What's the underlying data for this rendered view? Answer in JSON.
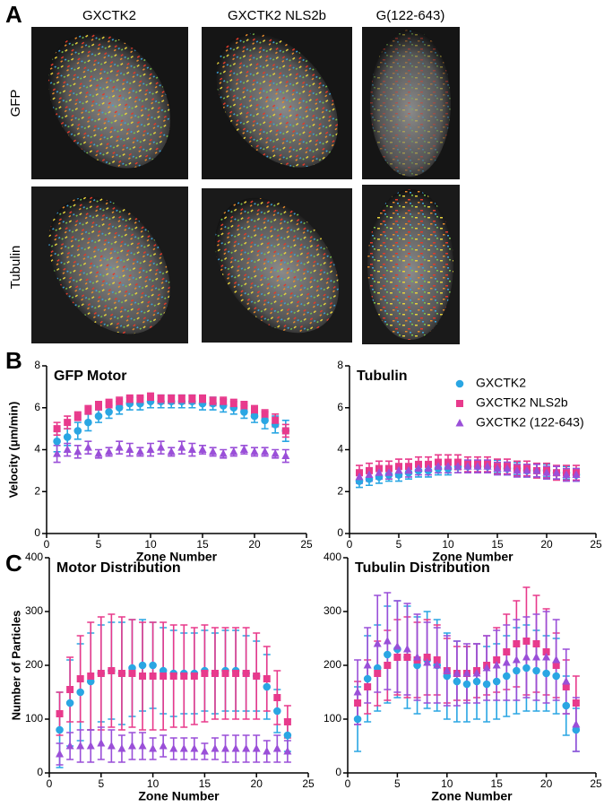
{
  "panels": {
    "a": "A",
    "b": "B",
    "c": "C"
  },
  "images": {
    "columns": [
      "GXCTK2",
      "GXCTK2 NLS2b",
      "G(122-643)"
    ],
    "rows": [
      "GFP",
      "Tubulin"
    ]
  },
  "chart_data": [
    {
      "type": "scatter",
      "title": "GFP Motor",
      "ylabel": "Velocity (μm/min)",
      "xlabel": "Zone Number",
      "x": [
        1,
        2,
        3,
        4,
        5,
        6,
        7,
        8,
        9,
        10,
        11,
        12,
        13,
        14,
        15,
        16,
        17,
        18,
        19,
        20,
        21,
        22,
        23
      ],
      "xlim": [
        0,
        25
      ],
      "xticks": [
        0,
        5,
        10,
        15,
        20,
        25
      ],
      "ylim": [
        0,
        8
      ],
      "yticks": [
        0,
        2,
        4,
        6,
        8
      ],
      "series": [
        {
          "name": "GXCTK2",
          "color": "#2aa6e3",
          "marker": "circle",
          "values": [
            4.4,
            4.6,
            4.9,
            5.3,
            5.6,
            5.8,
            6.0,
            6.2,
            6.2,
            6.3,
            6.3,
            6.3,
            6.3,
            6.3,
            6.2,
            6.2,
            6.1,
            6.0,
            5.8,
            5.6,
            5.4,
            5.2,
            4.9
          ],
          "errors": [
            0.5,
            0.4,
            0.4,
            0.4,
            0.3,
            0.3,
            0.3,
            0.3,
            0.3,
            0.3,
            0.3,
            0.3,
            0.3,
            0.3,
            0.3,
            0.3,
            0.3,
            0.3,
            0.3,
            0.3,
            0.4,
            0.4,
            0.5
          ]
        },
        {
          "name": "GXCTK2 NLS2b",
          "color": "#e83a8c",
          "marker": "square",
          "values": [
            5.0,
            5.3,
            5.6,
            5.9,
            6.1,
            6.2,
            6.3,
            6.4,
            6.4,
            6.5,
            6.4,
            6.4,
            6.4,
            6.4,
            6.4,
            6.3,
            6.3,
            6.2,
            6.1,
            5.9,
            5.7,
            5.4,
            4.9
          ],
          "errors": [
            0.3,
            0.3,
            0.2,
            0.2,
            0.2,
            0.2,
            0.2,
            0.2,
            0.2,
            0.2,
            0.2,
            0.2,
            0.2,
            0.2,
            0.2,
            0.2,
            0.2,
            0.2,
            0.2,
            0.2,
            0.2,
            0.3,
            0.3
          ]
        },
        {
          "name": "GXCTK2 (122-643)",
          "color": "#9a4fd8",
          "marker": "triangle",
          "values": [
            3.8,
            4.0,
            3.9,
            4.1,
            3.8,
            3.9,
            4.1,
            4.0,
            3.9,
            4.0,
            4.1,
            3.9,
            4.1,
            4.0,
            4.0,
            3.9,
            3.8,
            3.9,
            4.0,
            3.9,
            3.9,
            3.8,
            3.7
          ],
          "errors": [
            0.4,
            0.3,
            0.3,
            0.3,
            0.2,
            0.2,
            0.3,
            0.3,
            0.2,
            0.3,
            0.3,
            0.2,
            0.3,
            0.3,
            0.2,
            0.2,
            0.2,
            0.2,
            0.2,
            0.2,
            0.2,
            0.2,
            0.3
          ]
        }
      ]
    },
    {
      "type": "scatter",
      "title": "Tubulin",
      "xlabel": "Zone Number",
      "legend": "top-right",
      "x": [
        1,
        2,
        3,
        4,
        5,
        6,
        7,
        8,
        9,
        10,
        11,
        12,
        13,
        14,
        15,
        16,
        17,
        18,
        19,
        20,
        21,
        22,
        23
      ],
      "xlim": [
        0,
        25
      ],
      "xticks": [
        0,
        5,
        10,
        15,
        20,
        25
      ],
      "ylim": [
        0,
        8
      ],
      "yticks": [
        0,
        2,
        4,
        6,
        8
      ],
      "series": [
        {
          "name": "GXCTK2",
          "color": "#2aa6e3",
          "marker": "circle",
          "values": [
            2.5,
            2.6,
            2.7,
            2.8,
            2.8,
            2.9,
            3.0,
            3.0,
            3.1,
            3.1,
            3.2,
            3.2,
            3.2,
            3.2,
            3.2,
            3.1,
            3.1,
            3.0,
            3.0,
            3.0,
            2.9,
            2.9,
            2.8
          ],
          "errors": [
            0.3,
            0.3,
            0.3,
            0.3,
            0.3,
            0.3,
            0.3,
            0.3,
            0.3,
            0.3,
            0.3,
            0.3,
            0.3,
            0.3,
            0.3,
            0.3,
            0.3,
            0.3,
            0.3,
            0.3,
            0.3,
            0.3,
            0.3
          ]
        },
        {
          "name": "GXCTK2 NLS2b",
          "color": "#e83a8c",
          "marker": "square",
          "values": [
            2.9,
            3.0,
            3.1,
            3.1,
            3.2,
            3.2,
            3.3,
            3.3,
            3.4,
            3.4,
            3.4,
            3.3,
            3.3,
            3.3,
            3.2,
            3.2,
            3.1,
            3.1,
            3.0,
            3.0,
            2.9,
            2.9,
            2.9
          ],
          "errors": [
            0.35,
            0.35,
            0.35,
            0.35,
            0.35,
            0.35,
            0.35,
            0.35,
            0.35,
            0.35,
            0.35,
            0.35,
            0.35,
            0.35,
            0.35,
            0.35,
            0.35,
            0.35,
            0.35,
            0.35,
            0.35,
            0.35,
            0.35
          ]
        },
        {
          "name": "GXCTK2 (122-643)",
          "color": "#9a4fd8",
          "marker": "triangle",
          "values": [
            2.7,
            2.8,
            2.9,
            2.9,
            3.0,
            3.0,
            3.1,
            3.1,
            3.2,
            3.2,
            3.2,
            3.2,
            3.2,
            3.2,
            3.1,
            3.1,
            3.0,
            3.0,
            3.0,
            2.9,
            2.9,
            2.8,
            2.8
          ],
          "errors": [
            0.3,
            0.3,
            0.3,
            0.3,
            0.3,
            0.3,
            0.3,
            0.3,
            0.3,
            0.3,
            0.3,
            0.3,
            0.3,
            0.3,
            0.3,
            0.3,
            0.3,
            0.3,
            0.3,
            0.3,
            0.3,
            0.3,
            0.3
          ]
        }
      ]
    },
    {
      "type": "scatter",
      "title": "Motor Distribution",
      "ylabel": "Number of Particles",
      "xlabel": "Zone Number",
      "x": [
        1,
        2,
        3,
        4,
        5,
        6,
        7,
        8,
        9,
        10,
        11,
        12,
        13,
        14,
        15,
        16,
        17,
        18,
        19,
        20,
        21,
        22,
        23
      ],
      "xlim": [
        0,
        25
      ],
      "xticks": [
        0,
        5,
        10,
        15,
        20,
        25
      ],
      "ylim": [
        0,
        400
      ],
      "yticks": [
        0,
        100,
        200,
        300,
        400
      ],
      "series": [
        {
          "name": "GXCTK2",
          "color": "#2aa6e3",
          "marker": "circle",
          "values": [
            80,
            130,
            150,
            170,
            185,
            190,
            185,
            195,
            200,
            200,
            190,
            185,
            185,
            185,
            190,
            185,
            190,
            190,
            185,
            180,
            160,
            115,
            70
          ],
          "errors": [
            70,
            80,
            90,
            90,
            90,
            90,
            95,
            90,
            85,
            80,
            80,
            80,
            75,
            75,
            75,
            75,
            75,
            75,
            70,
            65,
            60,
            40,
            30
          ]
        },
        {
          "name": "GXCTK2 NLS2b",
          "color": "#e83a8c",
          "marker": "square",
          "values": [
            110,
            155,
            175,
            180,
            185,
            190,
            185,
            185,
            180,
            180,
            180,
            180,
            180,
            180,
            185,
            185,
            185,
            185,
            185,
            180,
            175,
            140,
            95
          ],
          "errors": [
            40,
            60,
            80,
            100,
            105,
            105,
            105,
            100,
            100,
            100,
            100,
            95,
            95,
            90,
            90,
            85,
            85,
            85,
            85,
            80,
            60,
            50,
            30
          ]
        },
        {
          "name": "GXCTK2 (122-643)",
          "color": "#9a4fd8",
          "marker": "triangle",
          "values": [
            35,
            50,
            50,
            50,
            55,
            50,
            45,
            50,
            50,
            45,
            50,
            45,
            45,
            45,
            40,
            45,
            45,
            45,
            45,
            45,
            40,
            45,
            40
          ],
          "errors": [
            20,
            25,
            30,
            30,
            30,
            30,
            25,
            25,
            25,
            20,
            20,
            20,
            20,
            20,
            15,
            20,
            25,
            25,
            25,
            25,
            20,
            25,
            20
          ]
        }
      ]
    },
    {
      "type": "scatter",
      "title": "Tubulin Distribution",
      "xlabel": "Zone Number",
      "x": [
        1,
        2,
        3,
        4,
        5,
        6,
        7,
        8,
        9,
        10,
        11,
        12,
        13,
        14,
        15,
        16,
        17,
        18,
        19,
        20,
        21,
        22,
        23
      ],
      "xlim": [
        0,
        25
      ],
      "xticks": [
        0,
        5,
        10,
        15,
        20,
        25
      ],
      "ylim": [
        0,
        400
      ],
      "yticks": [
        0,
        100,
        200,
        300,
        400
      ],
      "series": [
        {
          "name": "GXCTK2",
          "color": "#2aa6e3",
          "marker": "circle",
          "values": [
            100,
            175,
            195,
            220,
            230,
            215,
            200,
            210,
            200,
            180,
            170,
            165,
            170,
            165,
            170,
            180,
            190,
            195,
            190,
            185,
            180,
            125,
            80
          ],
          "errors": [
            60,
            80,
            80,
            90,
            90,
            95,
            90,
            90,
            85,
            80,
            75,
            70,
            70,
            70,
            70,
            75,
            80,
            80,
            75,
            70,
            70,
            55,
            40
          ]
        },
        {
          "name": "GXCTK2 NLS2b",
          "color": "#e83a8c",
          "marker": "square",
          "values": [
            130,
            160,
            185,
            200,
            215,
            215,
            210,
            215,
            210,
            190,
            185,
            185,
            190,
            200,
            210,
            225,
            240,
            245,
            240,
            225,
            200,
            160,
            130
          ],
          "errors": [
            40,
            50,
            60,
            65,
            70,
            75,
            70,
            70,
            65,
            60,
            50,
            50,
            50,
            55,
            60,
            70,
            80,
            100,
            90,
            80,
            60,
            50,
            50
          ]
        },
        {
          "name": "GXCTK2 (122-643)",
          "color": "#9a4fd8",
          "marker": "triangle",
          "values": [
            150,
            200,
            240,
            245,
            235,
            230,
            215,
            205,
            200,
            190,
            185,
            185,
            185,
            195,
            200,
            205,
            210,
            215,
            215,
            215,
            210,
            170,
            90
          ],
          "errors": [
            60,
            70,
            90,
            90,
            85,
            85,
            80,
            75,
            70,
            65,
            60,
            55,
            55,
            60,
            65,
            70,
            75,
            75,
            80,
            85,
            75,
            60,
            50
          ]
        }
      ]
    }
  ]
}
